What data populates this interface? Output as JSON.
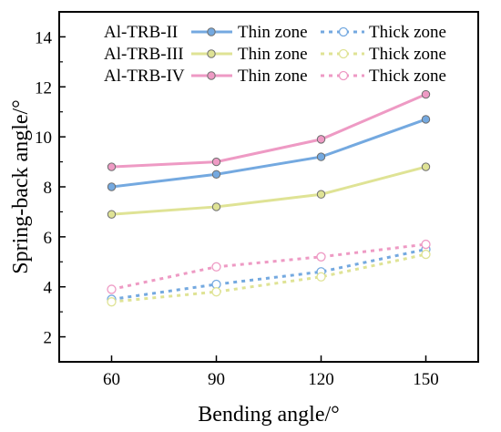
{
  "chart_data": {
    "type": "line",
    "xlabel": "Bending angle/°",
    "ylabel": "Spring-back angle/°",
    "categories": [
      60,
      90,
      120,
      150
    ],
    "xlim": [
      45,
      165
    ],
    "ylim": [
      1,
      15
    ],
    "x_ticks": [
      60,
      90,
      120,
      150
    ],
    "y_ticks": [
      2,
      4,
      6,
      8,
      10,
      12,
      14
    ],
    "grid": false,
    "legend_position": "top-left",
    "series": [
      {
        "group": "Al-TRB-II",
        "name": "Thin zone",
        "style": "solid",
        "color": "#74a9e0",
        "values": [
          8.0,
          8.5,
          9.2,
          10.7
        ]
      },
      {
        "group": "Al-TRB-III",
        "name": "Thin zone",
        "style": "solid",
        "color": "#dfe395",
        "values": [
          6.9,
          7.2,
          7.7,
          8.8
        ]
      },
      {
        "group": "Al-TRB-IV",
        "name": "Thin zone",
        "style": "solid",
        "color": "#ee9ac4",
        "values": [
          8.8,
          9.0,
          9.9,
          11.7
        ]
      },
      {
        "group": "Al-TRB-II",
        "name": "Thick zone",
        "style": "dashed",
        "color": "#74a9e0",
        "values": [
          3.5,
          4.1,
          4.6,
          5.5
        ]
      },
      {
        "group": "Al-TRB-III",
        "name": "Thick zone",
        "style": "dashed",
        "color": "#dfe395",
        "values": [
          3.4,
          3.8,
          4.4,
          5.3
        ]
      },
      {
        "group": "Al-TRB-IV",
        "name": "Thick zone",
        "style": "dashed",
        "color": "#ee9ac4",
        "values": [
          3.9,
          4.8,
          5.2,
          5.7
        ]
      }
    ],
    "legend_rows": [
      {
        "label": "Al-TRB-II",
        "thin_series": 0,
        "thick_series": 3
      },
      {
        "label": "Al-TRB-III",
        "thin_series": 1,
        "thick_series": 4
      },
      {
        "label": "Al-TRB-IV",
        "thin_series": 2,
        "thick_series": 5
      }
    ]
  }
}
